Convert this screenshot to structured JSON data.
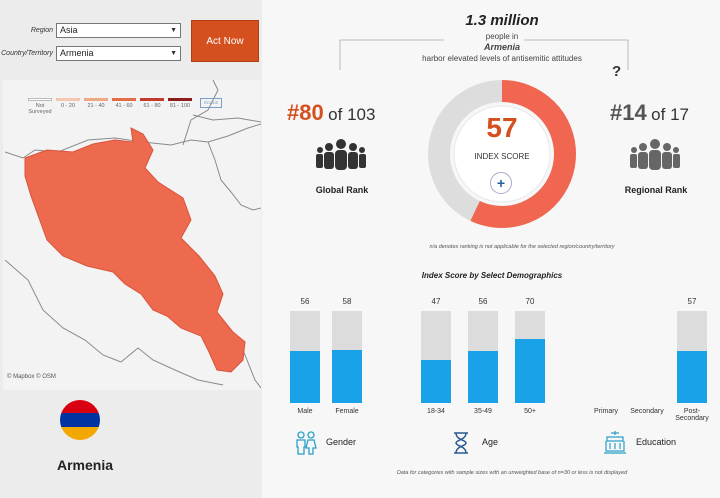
{
  "filters": {
    "region_label": "Region",
    "region_value": "Asia",
    "country_label": "Country/Territory",
    "country_value": "Armenia"
  },
  "act_now_label": "Act Now",
  "legend": [
    {
      "label": "Not Surveyed",
      "color": "#ffffff"
    },
    {
      "label": "0 - 20",
      "color": "#f3c7b0"
    },
    {
      "label": "21 - 40",
      "color": "#eda983"
    },
    {
      "label": "41 - 60",
      "color": "#e66c48"
    },
    {
      "label": "61 - 80",
      "color": "#c33a2a"
    },
    {
      "label": "81 - 100",
      "color": "#8c1d1d"
    }
  ],
  "scale_label": "SCALE",
  "map_credit": "© Mapbox  © OSM",
  "country_display": "Armenia",
  "flag_colors": [
    "#d90012",
    "#0033a0",
    "#f2a800"
  ],
  "headline": {
    "number": "1.3 million",
    "line1": "people in",
    "country": "Armenia",
    "line2": "harbor elevated levels of antisemitic attitudes"
  },
  "index": {
    "score": "57",
    "score_value": 57,
    "label": "INDEX SCORE",
    "plus": "+"
  },
  "global_rank": {
    "rank": "#80",
    "of": "of 103",
    "label": "Global Rank"
  },
  "regional_rank": {
    "rank": "#14",
    "of": "of 17",
    "label": "Regional Rank"
  },
  "question_mark": "?",
  "na_note": "n/a denotes ranking is not applicable for the selected region/country/territory",
  "demographics_title": "Index Score by Select Demographics",
  "bottom_note": "Data for categories with sample sizes with an unweighted base of n=30 or less is not displayed",
  "colors": {
    "accent": "#d5501f",
    "map_fill": "#ee6a4f",
    "bar_fill": "#19a2e8",
    "bar_track": "#dcdcdc",
    "ring_fill": "#f06650",
    "ring_track": "#dddddd"
  },
  "chart_data": {
    "type": "bar",
    "title": "Index Score by Select Demographics",
    "ylim": [
      0,
      100
    ],
    "groups": [
      {
        "name": "Gender",
        "categories": [
          "Male",
          "Female"
        ],
        "values": [
          56,
          58
        ]
      },
      {
        "name": "Age",
        "categories": [
          "18-34",
          "35-49",
          "50+"
        ],
        "values": [
          47,
          56,
          70
        ]
      },
      {
        "name": "Education",
        "categories": [
          "Primary",
          "Secondary",
          "Post-Secondary"
        ],
        "values": [
          null,
          null,
          57
        ]
      }
    ]
  }
}
